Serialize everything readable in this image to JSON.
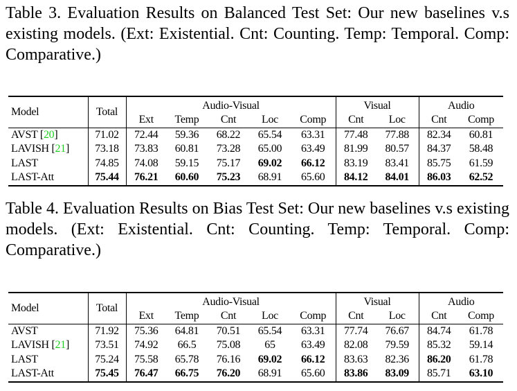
{
  "tables": [
    {
      "caption": "Table 3. Evaluation Results on Balanced Test Set: Our new baselines v.s existing models. (Ext: Existential. Cnt: Counting. Temp: Temporal. Comp: Comparative.)",
      "header": {
        "model": "Model",
        "total": "Total",
        "groups": [
          "Audio-Visual",
          "Visual",
          "Audio"
        ],
        "sub": [
          "Ext",
          "Temp",
          "Cnt",
          "Loc",
          "Comp",
          "Cnt",
          "Loc",
          "Cnt",
          "Comp"
        ]
      },
      "rows": [
        {
          "model": "AVST",
          "ref": "20",
          "values": [
            "71.02",
            "72.44",
            "59.36",
            "68.22",
            "65.54",
            "63.31",
            "77.48",
            "77.88",
            "82.34",
            "60.81"
          ],
          "bold": []
        },
        {
          "model": "LAVISH",
          "ref": "21",
          "values": [
            "73.18",
            "73.83",
            "60.81",
            "73.28",
            "65.00",
            "63.49",
            "81.99",
            "80.57",
            "84.37",
            "58.48"
          ],
          "bold": []
        },
        {
          "model": "LAST",
          "ref": null,
          "values": [
            "74.85",
            "74.08",
            "59.15",
            "75.17",
            "69.02",
            "66.12",
            "83.19",
            "83.41",
            "85.75",
            "61.59"
          ],
          "bold": [
            4,
            5
          ]
        },
        {
          "model": "LAST-Att",
          "ref": null,
          "values": [
            "75.44",
            "76.21",
            "60.60",
            "75.23",
            "68.91",
            "65.60",
            "84.12",
            "84.01",
            "86.03",
            "62.52"
          ],
          "bold": [
            0,
            1,
            2,
            3,
            6,
            7,
            8,
            9
          ]
        }
      ]
    },
    {
      "caption": "Table 4. Evaluation Results on Bias Test Set: Our new baselines v.s existing models. (Ext: Existential. Cnt: Counting. Temp: Temporal. Comp: Comparative.)",
      "header": {
        "model": "Model",
        "total": "Total",
        "groups": [
          "Audio-Visual",
          "Visual",
          "Audio"
        ],
        "sub": [
          "Ext",
          "Temp",
          "Cnt",
          "Loc",
          "Comp",
          "Cnt",
          "Loc",
          "Cnt",
          "Comp"
        ]
      },
      "rows": [
        {
          "model": "AVST",
          "ref": null,
          "values": [
            "71.92",
            "75.36",
            "64.81",
            "70.51",
            "65.54",
            "63.31",
            "77.74",
            "76.67",
            "84.74",
            "61.78"
          ],
          "bold": []
        },
        {
          "model": "LAVISH",
          "ref": "21",
          "values": [
            "73.51",
            "74.92",
            "66.5",
            "75.08",
            "65",
            "63.49",
            "82.08",
            "79.59",
            "85.32",
            "59.14"
          ],
          "bold": []
        },
        {
          "model": "LAST",
          "ref": null,
          "values": [
            "75.24",
            "75.58",
            "65.78",
            "76.16",
            "69.02",
            "66.12",
            "83.63",
            "82.36",
            "86.20",
            "61.78"
          ],
          "bold": [
            4,
            5,
            8
          ]
        },
        {
          "model": "LAST-Att",
          "ref": null,
          "values": [
            "75.45",
            "76.47",
            "66.75",
            "76.20",
            "68.91",
            "65.60",
            "83.86",
            "83.09",
            "85.71",
            "63.10"
          ],
          "bold": [
            0,
            1,
            2,
            3,
            6,
            7,
            9
          ]
        }
      ]
    }
  ],
  "colors": {
    "citation": "#22cc22"
  }
}
